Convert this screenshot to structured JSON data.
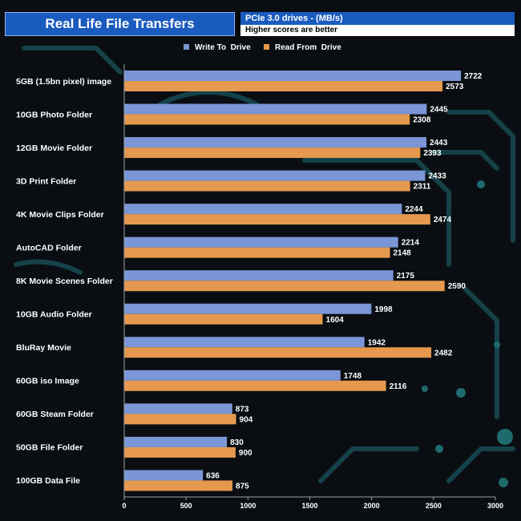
{
  "header": {
    "title": "Real Life File Transfers",
    "subtitle": "PCIe 3.0 drives - (MB/s)",
    "note": "Higher scores are better"
  },
  "colors": {
    "write": "#7b96d6",
    "read": "#e5994e",
    "axis": "#9aa0a6",
    "panel": "#1a5bbf"
  },
  "chart_data": {
    "type": "bar",
    "orientation": "horizontal",
    "title": "Real Life File Transfers",
    "subtitle": "PCIe 3.0 drives - (MB/s)",
    "xlabel": "",
    "ylabel": "",
    "xlim": [
      0,
      3000
    ],
    "ticks": [
      0,
      500,
      1000,
      1500,
      2000,
      2500,
      3000
    ],
    "legend_position": "top",
    "categories": [
      "5GB (1.5bn pixel) image",
      "10GB Photo Folder",
      "12GB Movie Folder",
      "3D Print Folder",
      "4K Movie Clips Folder",
      "AutoCAD Folder",
      "8K Movie Scenes Folder",
      "10GB Audio Folder",
      "BluRay Movie",
      "60GB iso Image",
      "60GB Steam Folder",
      "50GB File Folder",
      "100GB Data File"
    ],
    "series": [
      {
        "name": "Write To  Drive",
        "values": [
          2722,
          2445,
          2443,
          2433,
          2244,
          2214,
          2175,
          1998,
          1942,
          1748,
          873,
          830,
          636
        ]
      },
      {
        "name": "Read From  Drive",
        "values": [
          2573,
          2308,
          2393,
          2311,
          2474,
          2148,
          2590,
          1604,
          2482,
          2116,
          904,
          900,
          875
        ]
      }
    ]
  }
}
